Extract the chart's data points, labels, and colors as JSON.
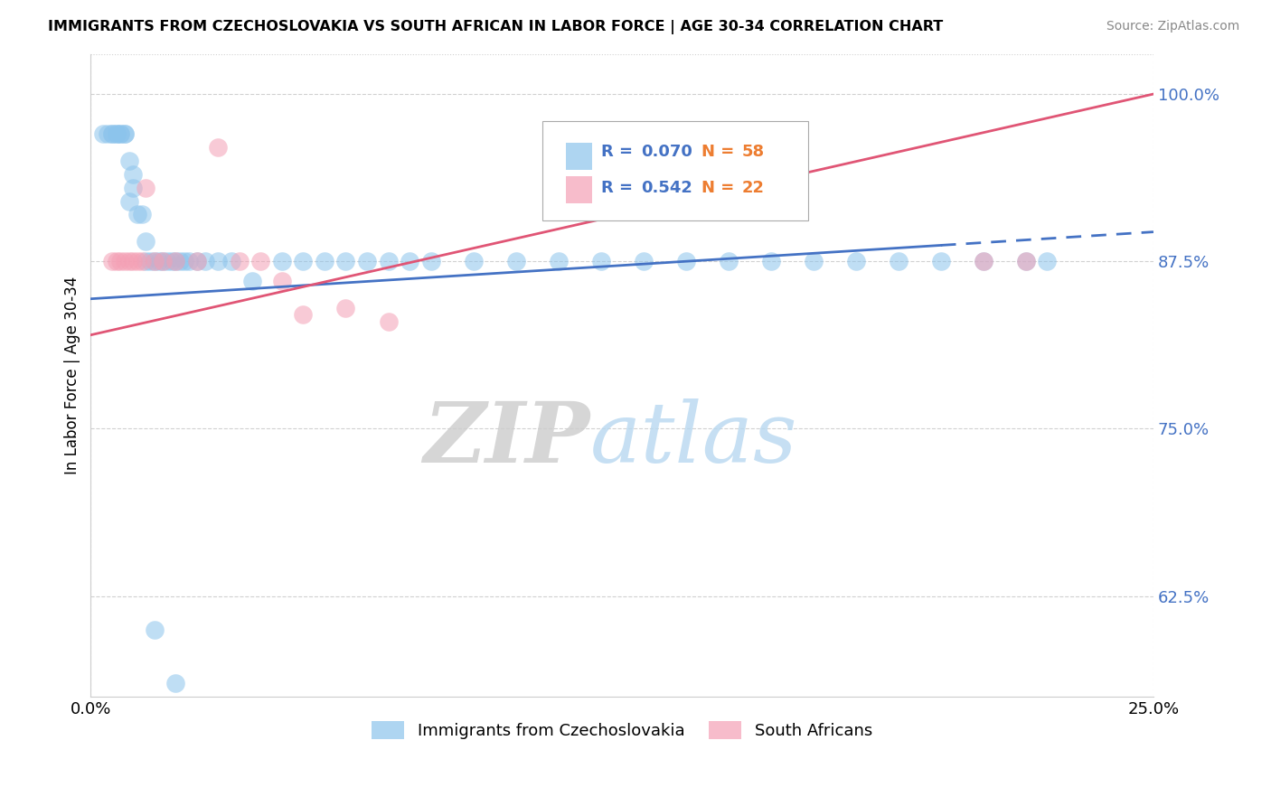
{
  "title": "IMMIGRANTS FROM CZECHOSLOVAKIA VS SOUTH AFRICAN IN LABOR FORCE | AGE 30-34 CORRELATION CHART",
  "source_text": "Source: ZipAtlas.com",
  "ylabel": "In Labor Force | Age 30-34",
  "xlim": [
    0.0,
    0.25
  ],
  "ylim": [
    0.55,
    1.03
  ],
  "x_ticks": [
    0.0,
    0.25
  ],
  "x_tick_labels": [
    "0.0%",
    "25.0%"
  ],
  "y_ticks": [
    0.625,
    0.75,
    0.875,
    1.0
  ],
  "y_tick_labels": [
    "62.5%",
    "75.0%",
    "87.5%",
    "100.0%"
  ],
  "blue_color": "#8CC4EC",
  "pink_color": "#F4A0B5",
  "blue_line_color": "#4472C4",
  "pink_line_color": "#E05575",
  "blue_label": "Immigrants from Czechoslovakia",
  "pink_label": "South Africans",
  "R_blue": 0.07,
  "N_blue": 58,
  "R_pink": 0.542,
  "N_pink": 22,
  "legend_R_color": "#4472C4",
  "legend_N_color": "#ED7D31",
  "blue_scatter_x": [
    0.003,
    0.004,
    0.005,
    0.005,
    0.006,
    0.006,
    0.007,
    0.007,
    0.008,
    0.008,
    0.009,
    0.009,
    0.01,
    0.01,
    0.011,
    0.012,
    0.013,
    0.013,
    0.014,
    0.015,
    0.016,
    0.017,
    0.018,
    0.019,
    0.02,
    0.021,
    0.022,
    0.023,
    0.025,
    0.027,
    0.03,
    0.033,
    0.038,
    0.045,
    0.05,
    0.055,
    0.06,
    0.065,
    0.07,
    0.075,
    0.08,
    0.09,
    0.1,
    0.11,
    0.12,
    0.13,
    0.14,
    0.15,
    0.16,
    0.17,
    0.18,
    0.19,
    0.2,
    0.21,
    0.22,
    0.225,
    0.015,
    0.02
  ],
  "blue_scatter_y": [
    0.97,
    0.97,
    0.97,
    0.97,
    0.97,
    0.97,
    0.97,
    0.97,
    0.97,
    0.97,
    0.92,
    0.95,
    0.94,
    0.93,
    0.91,
    0.91,
    0.89,
    0.875,
    0.875,
    0.875,
    0.875,
    0.875,
    0.875,
    0.875,
    0.875,
    0.875,
    0.875,
    0.875,
    0.875,
    0.875,
    0.875,
    0.875,
    0.86,
    0.875,
    0.875,
    0.875,
    0.875,
    0.875,
    0.875,
    0.875,
    0.875,
    0.875,
    0.875,
    0.875,
    0.875,
    0.875,
    0.875,
    0.875,
    0.875,
    0.875,
    0.875,
    0.875,
    0.875,
    0.875,
    0.875,
    0.875,
    0.6,
    0.56
  ],
  "pink_scatter_x": [
    0.005,
    0.006,
    0.007,
    0.008,
    0.009,
    0.01,
    0.011,
    0.012,
    0.013,
    0.015,
    0.017,
    0.02,
    0.025,
    0.03,
    0.035,
    0.04,
    0.045,
    0.05,
    0.06,
    0.07,
    0.21,
    0.22
  ],
  "pink_scatter_y": [
    0.875,
    0.875,
    0.875,
    0.875,
    0.875,
    0.875,
    0.875,
    0.875,
    0.93,
    0.875,
    0.875,
    0.875,
    0.875,
    0.96,
    0.875,
    0.875,
    0.86,
    0.835,
    0.84,
    0.83,
    0.875,
    0.875
  ],
  "blue_line_x0": 0.0,
  "blue_line_y0": 0.847,
  "blue_line_x1": 0.25,
  "blue_line_y1": 0.897,
  "blue_line_solid_end": 0.2,
  "pink_line_x0": 0.0,
  "pink_line_y0": 0.82,
  "pink_line_x1": 0.25,
  "pink_line_y1": 1.0,
  "watermark_zip": "ZIP",
  "watermark_atlas": "atlas",
  "background_color": "#FFFFFF",
  "grid_color": "#CCCCCC",
  "tick_color_y": "#4472C4",
  "tick_color_x": "#000000"
}
